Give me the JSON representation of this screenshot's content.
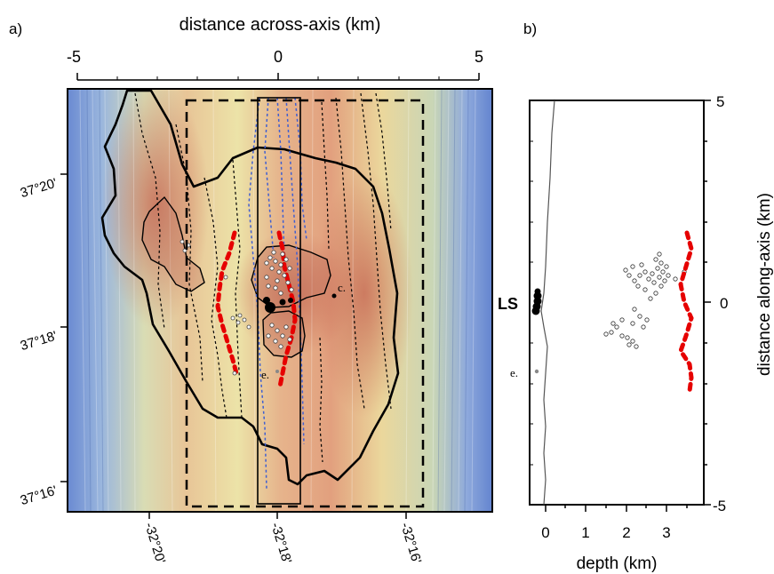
{
  "panel_a": {
    "label": "a)",
    "top_axis_title": "distance across-axis (km)",
    "top_ticks": [
      "-5",
      "0",
      "5"
    ],
    "lat_ticks": [
      "37°20'",
      "37°18'",
      "37°16'"
    ],
    "lon_ticks": [
      "-32°20'",
      "-32°18'",
      "-32°16'"
    ],
    "annotations": {
      "c": "c.",
      "e": "e."
    }
  },
  "panel_b": {
    "label": "b)",
    "x_axis_title": "depth (km)",
    "x_ticks": [
      "0",
      "1",
      "2",
      "3"
    ],
    "y_axis_title": "distance along-axis (km)",
    "y_ticks": [
      "5",
      "0",
      "-5"
    ],
    "ls_label": "LS",
    "e_label": "e."
  },
  "colors": {
    "deep": "#5f84c8",
    "shallow": "#c8755c",
    "melt_lens": "#e60000",
    "contours_dashed_blue": "#3f5fd1"
  }
}
